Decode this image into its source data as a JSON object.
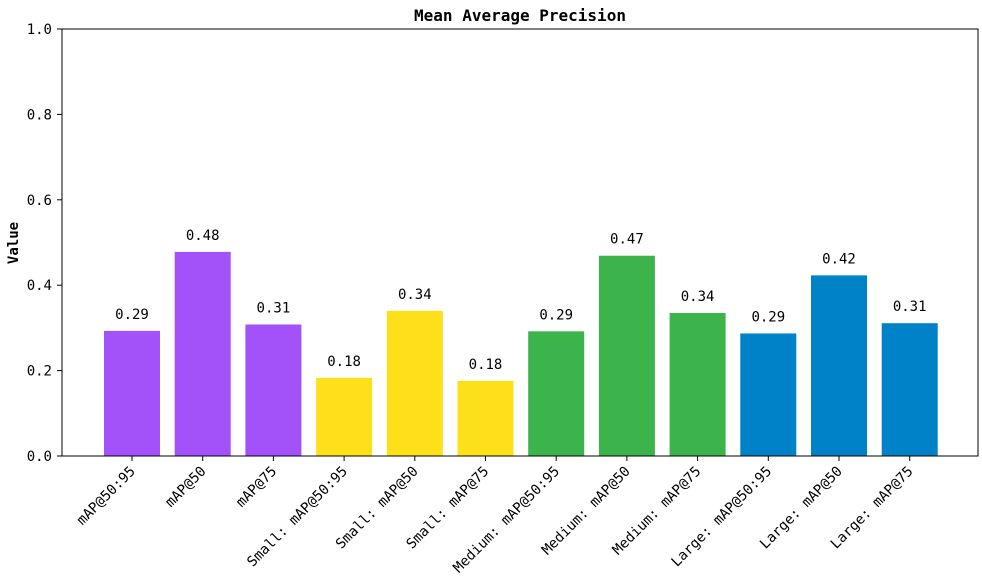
{
  "chart_data": {
    "type": "bar",
    "title": "Mean Average Precision",
    "xlabel": "",
    "ylabel": "Value",
    "ylim": [
      0,
      1.0
    ],
    "yticks": [
      "0.0",
      "0.2",
      "0.4",
      "0.6",
      "0.8",
      "1.0"
    ],
    "ytick_values": [
      0,
      0.2,
      0.4,
      0.6,
      0.8,
      1.0
    ],
    "categories": [
      "mAP@50:95",
      "mAP@50",
      "mAP@75",
      "Small: mAP@50:95",
      "Small: mAP@50",
      "Small: mAP@75",
      "Medium: mAP@50:95",
      "Medium: mAP@50",
      "Medium: mAP@75",
      "Large: mAP@50:95",
      "Large: mAP@50",
      "Large: mAP@75"
    ],
    "values": [
      0.293,
      0.478,
      0.308,
      0.183,
      0.34,
      0.176,
      0.292,
      0.469,
      0.335,
      0.287,
      0.423,
      0.311
    ],
    "labels": [
      "0.29",
      "0.48",
      "0.31",
      "0.18",
      "0.34",
      "0.18",
      "0.29",
      "0.47",
      "0.34",
      "0.29",
      "0.42",
      "0.31"
    ],
    "colors": [
      "#a352fa",
      "#a352fa",
      "#a352fa",
      "#fde01a",
      "#fde01a",
      "#fde01a",
      "#3cb44b",
      "#3cb44b",
      "#3cb44b",
      "#0082c8",
      "#0082c8",
      "#0082c8"
    ],
    "grid": false
  }
}
